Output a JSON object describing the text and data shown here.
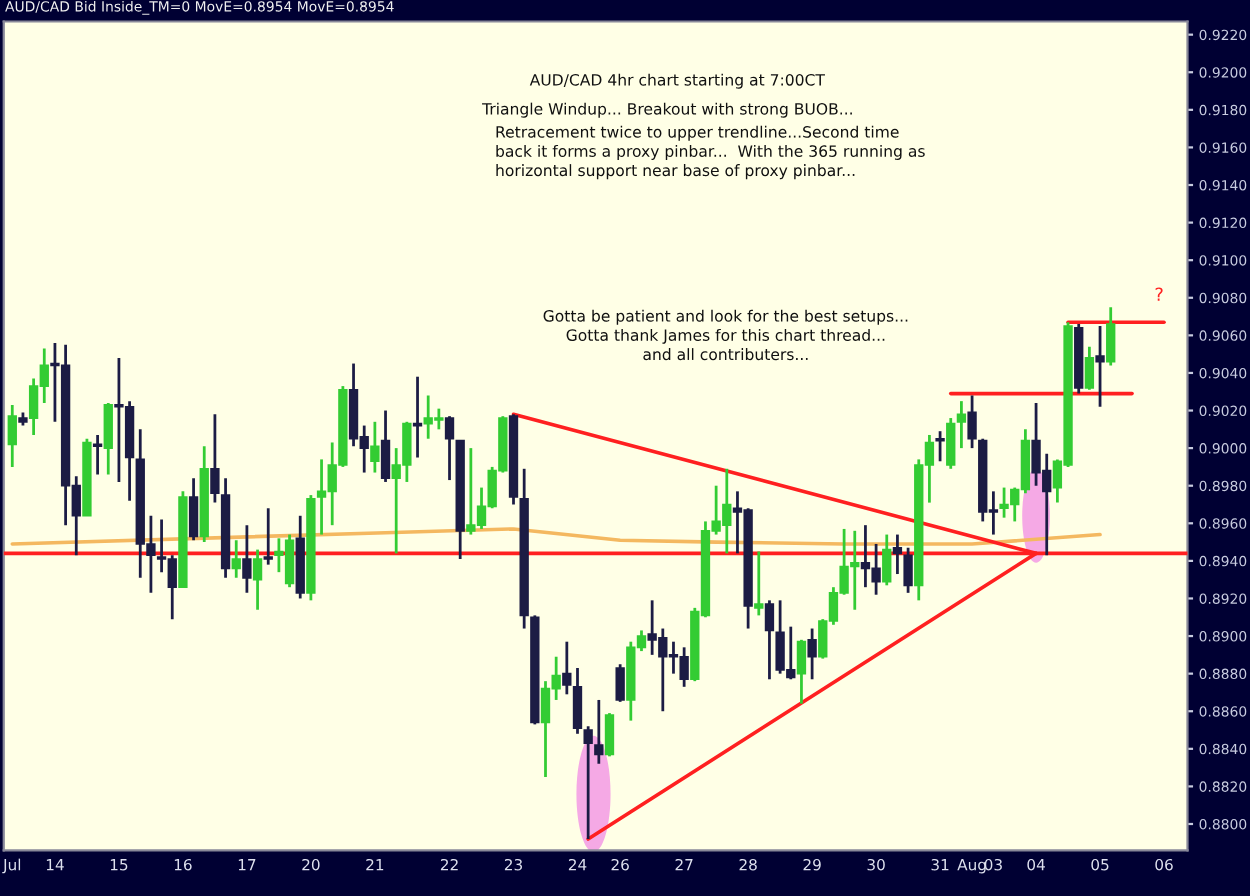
{
  "chart_data": {
    "type": "candlestick",
    "title": "AUD/CAD Bid Inside_TM=0 MovE=0.8954 MovE=0.8954",
    "categories": [
      "Jul",
      null,
      null,
      null,
      "14",
      null,
      null,
      null,
      null,
      null,
      "15",
      null,
      null,
      null,
      null,
      null,
      "16",
      null,
      null,
      null,
      null,
      null,
      "17",
      null,
      null,
      null,
      null,
      null,
      "20",
      null,
      null,
      null,
      null,
      null,
      "21",
      null,
      null,
      null,
      null,
      null,
      null,
      "22",
      null,
      null,
      null,
      null,
      null,
      "23",
      null,
      null,
      null,
      null,
      null,
      "24",
      null,
      null,
      null,
      "26",
      null,
      null,
      null,
      null,
      null,
      "27",
      null,
      null,
      null,
      null,
      null,
      "28",
      null,
      null,
      null,
      null,
      null,
      "29",
      null,
      null,
      null,
      null,
      null,
      "30",
      null,
      null,
      null,
      null,
      null,
      "31",
      null,
      null,
      "Aug",
      null,
      "03",
      null,
      null,
      null,
      "04",
      null,
      null,
      null,
      null,
      null,
      "05",
      null,
      null,
      null,
      null,
      null,
      "06"
    ],
    "ohlc": [
      [
        0.9002,
        0.9023,
        0.899,
        0.9017
      ],
      [
        0.9016,
        0.9019,
        0.9012,
        0.9014
      ],
      [
        0.9016,
        0.9037,
        0.9007,
        0.9033
      ],
      [
        0.9033,
        0.9053,
        0.9024,
        0.9044
      ],
      [
        0.9045,
        0.9056,
        0.9014,
        0.9044
      ],
      [
        0.9044,
        0.9055,
        0.8959,
        0.898
      ],
      [
        0.898,
        0.8985,
        0.8943,
        0.8964
      ],
      [
        0.8964,
        0.9005,
        0.8964,
        0.9003
      ],
      [
        0.9002,
        0.9007,
        0.8986,
        0.9001
      ],
      [
        0.9,
        0.9024,
        0.8986,
        0.9023
      ],
      [
        0.9023,
        0.9048,
        0.8982,
        0.9022
      ],
      [
        0.9022,
        0.9025,
        0.8972,
        0.8995
      ],
      [
        0.8994,
        0.901,
        0.8931,
        0.8949
      ],
      [
        0.8949,
        0.8964,
        0.8923,
        0.8943
      ],
      [
        0.8942,
        0.8962,
        0.8934,
        0.8941
      ],
      [
        0.8941,
        0.8943,
        0.8909,
        0.8926
      ],
      [
        0.8926,
        0.8977,
        0.8926,
        0.8974
      ],
      [
        0.8974,
        0.8984,
        0.8951,
        0.8953
      ],
      [
        0.8953,
        0.9001,
        0.895,
        0.8989
      ],
      [
        0.8989,
        0.9018,
        0.8971,
        0.8976
      ],
      [
        0.8975,
        0.8984,
        0.8931,
        0.8936
      ],
      [
        0.8936,
        0.8951,
        0.8931,
        0.8941
      ],
      [
        0.8941,
        0.8959,
        0.8923,
        0.8931
      ],
      [
        0.893,
        0.8946,
        0.8914,
        0.8941
      ],
      [
        0.8942,
        0.8968,
        0.8938,
        0.8941
      ],
      [
        0.8943,
        0.8952,
        0.8934,
        0.8945
      ],
      [
        0.8928,
        0.8954,
        0.8926,
        0.8951
      ],
      [
        0.8952,
        0.8964,
        0.892,
        0.8923
      ],
      [
        0.8923,
        0.8975,
        0.8919,
        0.8973
      ],
      [
        0.8974,
        0.8994,
        0.8954,
        0.8977
      ],
      [
        0.8977,
        0.9003,
        0.8959,
        0.8991
      ],
      [
        0.8991,
        0.9033,
        0.899,
        0.9031
      ],
      [
        0.9031,
        0.9045,
        0.9001,
        0.9005
      ],
      [
        0.9006,
        0.9012,
        0.8987,
        0.9
      ],
      [
        0.8993,
        0.9014,
        0.8987,
        0.9001
      ],
      [
        0.9004,
        0.902,
        0.8982,
        0.8984
      ],
      [
        0.8984,
        0.9,
        0.8944,
        0.8991
      ],
      [
        0.8991,
        0.9014,
        0.8982,
        0.9013
      ],
      [
        0.9013,
        0.9038,
        0.8995,
        0.9012
      ],
      [
        0.9013,
        0.9028,
        0.9005,
        0.9016
      ],
      [
        0.9015,
        0.9021,
        0.901,
        0.9016
      ],
      [
        0.9016,
        0.9017,
        0.8983,
        0.9005
      ],
      [
        0.9004,
        0.9004,
        0.8941,
        0.8956
      ],
      [
        0.8956,
        0.9,
        0.8954,
        0.8959
      ],
      [
        0.8959,
        0.8979,
        0.8957,
        0.8969
      ],
      [
        0.8969,
        0.899,
        0.8968,
        0.8988
      ],
      [
        0.8988,
        0.9017,
        0.8987,
        0.9016
      ],
      [
        0.9017,
        0.9018,
        0.897,
        0.8974
      ],
      [
        0.8973,
        0.8989,
        0.8904,
        0.8911
      ],
      [
        0.891,
        0.8911,
        0.8853,
        0.8854
      ],
      [
        0.8854,
        0.8876,
        0.8825,
        0.8872
      ],
      [
        0.8872,
        0.8889,
        0.8866,
        0.8879
      ],
      [
        0.888,
        0.8897,
        0.8869,
        0.8874
      ],
      [
        0.8873,
        0.8883,
        0.8848,
        0.8851
      ],
      [
        0.885,
        0.8852,
        0.8792,
        0.8843
      ],
      [
        0.8842,
        0.8866,
        0.8832,
        0.8837
      ],
      [
        0.8837,
        0.8859,
        0.8836,
        0.8858
      ],
      [
        0.8883,
        0.8885,
        0.8865,
        0.8866
      ],
      [
        0.8866,
        0.8897,
        0.8855,
        0.8894
      ],
      [
        0.8894,
        0.8903,
        0.8892,
        0.89
      ],
      [
        0.8901,
        0.8919,
        0.889,
        0.8898
      ],
      [
        0.8899,
        0.8904,
        0.886,
        0.8889
      ],
      [
        0.889,
        0.8897,
        0.888,
        0.8889
      ],
      [
        0.8889,
        0.8894,
        0.8873,
        0.8877
      ],
      [
        0.8877,
        0.8915,
        0.8876,
        0.8913
      ],
      [
        0.8911,
        0.8961,
        0.891,
        0.8956
      ],
      [
        0.8956,
        0.898,
        0.8954,
        0.8961
      ],
      [
        0.8959,
        0.8989,
        0.8944,
        0.897
      ],
      [
        0.8968,
        0.8977,
        0.8944,
        0.8966
      ],
      [
        0.8967,
        0.8968,
        0.8904,
        0.8916
      ],
      [
        0.8915,
        0.8945,
        0.8911,
        0.8917
      ],
      [
        0.8917,
        0.8919,
        0.8877,
        0.8903
      ],
      [
        0.8902,
        0.8919,
        0.888,
        0.8882
      ],
      [
        0.8882,
        0.8905,
        0.8877,
        0.8878
      ],
      [
        0.888,
        0.8898,
        0.8864,
        0.8897
      ],
      [
        0.8898,
        0.8904,
        0.8877,
        0.8889
      ],
      [
        0.8889,
        0.8909,
        0.8888,
        0.8908
      ],
      [
        0.8908,
        0.8926,
        0.8906,
        0.8923
      ],
      [
        0.8923,
        0.8957,
        0.8922,
        0.8937
      ],
      [
        0.8937,
        0.8956,
        0.8914,
        0.8939
      ],
      [
        0.8939,
        0.8959,
        0.8926,
        0.8936
      ],
      [
        0.8936,
        0.8949,
        0.8922,
        0.8929
      ],
      [
        0.8929,
        0.8954,
        0.8927,
        0.8946
      ],
      [
        0.8947,
        0.8954,
        0.8933,
        0.8944
      ],
      [
        0.8943,
        0.8947,
        0.8923,
        0.8927
      ],
      [
        0.8927,
        0.8994,
        0.8919,
        0.8991
      ],
      [
        0.8991,
        0.9007,
        0.8971,
        0.9003
      ],
      [
        0.9005,
        0.9009,
        0.8993,
        0.9004
      ],
      [
        0.8991,
        0.9016,
        0.8989,
        0.9013
      ],
      [
        0.9014,
        0.9025,
        0.9,
        0.9018
      ],
      [
        0.9019,
        0.9028,
        0.9,
        0.9005
      ],
      [
        0.9004,
        0.9005,
        0.8961,
        0.8966
      ],
      [
        0.8967,
        0.8977,
        0.8954,
        0.8966
      ],
      [
        0.8968,
        0.8979,
        0.8963,
        0.897
      ],
      [
        0.897,
        0.8979,
        0.8961,
        0.8978
      ],
      [
        0.8978,
        0.901,
        0.8976,
        0.9004
      ],
      [
        0.9004,
        0.9024,
        0.898,
        0.8987
      ],
      [
        0.8988,
        0.8997,
        0.8943,
        0.8977
      ],
      [
        0.8979,
        0.8994,
        0.8971,
        0.8993
      ],
      [
        0.8991,
        0.9067,
        0.899,
        0.9065
      ],
      [
        0.9064,
        0.9066,
        0.9029,
        0.9032
      ],
      [
        0.9032,
        0.9054,
        0.9031,
        0.9048
      ],
      [
        0.9049,
        0.9065,
        0.9022,
        0.9046
      ],
      [
        0.9046,
        0.9075,
        0.9044,
        0.9066
      ],
      null,
      null,
      null,
      null,
      null
    ],
    "colors": [
      "#33cc33",
      "#1c1c44",
      "#33cc33",
      "#33cc33",
      "#1c1c44",
      "#1c1c44",
      "#1c1c44",
      "#33cc33",
      "#1c1c44",
      "#33cc33",
      "#1c1c44",
      "#1c1c44",
      "#1c1c44",
      "#1c1c44",
      "#1c1c44",
      "#1c1c44",
      "#33cc33",
      "#1c1c44",
      "#33cc33",
      "#1c1c44",
      "#1c1c44",
      "#33cc33",
      "#1c1c44",
      "#33cc33",
      "#1c1c44",
      "#33cc33",
      "#33cc33",
      "#1c1c44",
      "#33cc33",
      "#33cc33",
      "#33cc33",
      "#33cc33",
      "#1c1c44",
      "#1c1c44",
      "#33cc33",
      "#1c1c44",
      "#33cc33",
      "#33cc33",
      "#1c1c44",
      "#33cc33",
      "#33cc33",
      "#1c1c44",
      "#1c1c44",
      "#33cc33",
      "#33cc33",
      "#33cc33",
      "#33cc33",
      "#1c1c44",
      "#1c1c44",
      "#1c1c44",
      "#33cc33",
      "#33cc33",
      "#1c1c44",
      "#1c1c44",
      "#1c1c44",
      "#1c1c44",
      "#33cc33",
      "#1c1c44",
      "#33cc33",
      "#33cc33",
      "#1c1c44",
      "#1c1c44",
      "#1c1c44",
      "#1c1c44",
      "#33cc33",
      "#33cc33",
      "#33cc33",
      "#33cc33",
      "#1c1c44",
      "#1c1c44",
      "#33cc33",
      "#1c1c44",
      "#1c1c44",
      "#1c1c44",
      "#33cc33",
      "#1c1c44",
      "#33cc33",
      "#33cc33",
      "#33cc33",
      "#33cc33",
      "#1c1c44",
      "#1c1c44",
      "#33cc33",
      "#1c1c44",
      "#1c1c44",
      "#33cc33",
      "#33cc33",
      "#1c1c44",
      "#33cc33",
      "#33cc33",
      "#1c1c44",
      "#1c1c44",
      "#1c1c44",
      "#33cc33",
      "#33cc33",
      "#33cc33",
      "#1c1c44",
      "#1c1c44",
      "#33cc33",
      "#33cc33",
      "#1c1c44",
      "#33cc33",
      "#1c1c44",
      "#33cc33",
      null,
      null,
      null,
      null,
      null
    ],
    "series": [
      {
        "type": "line",
        "color": "#f4b860",
        "values": [
          0.8949,
          null,
          null,
          null,
          null,
          null,
          null,
          null,
          null,
          null,
          null,
          null,
          null,
          null,
          null,
          null,
          null,
          null,
          null,
          null,
          null,
          null,
          null,
          null,
          null,
          null,
          null,
          null,
          null,
          null,
          null,
          null,
          null,
          null,
          null,
          0.8955,
          null,
          null,
          null,
          null,
          null,
          null,
          null,
          null,
          null,
          null,
          null,
          0.8957,
          null,
          null,
          null,
          null,
          null,
          null,
          null,
          null,
          null,
          0.8951,
          null,
          null,
          null,
          null,
          null,
          null,
          null,
          null,
          0.895,
          null,
          null,
          null,
          null,
          null,
          null,
          null,
          null,
          null,
          null,
          null,
          0.8949,
          null,
          null,
          null,
          null,
          null,
          null,
          null,
          null,
          null,
          null,
          null,
          0.8949,
          null,
          null,
          null,
          null,
          null,
          null,
          null,
          null,
          null,
          null,
          null,
          0.8954,
          null,
          null,
          null,
          null,
          null,
          null
        ]
      },
      {
        "type": "line",
        "color": "#ff2020",
        "values": [
          null,
          null,
          null,
          null,
          null,
          null,
          null,
          null,
          null,
          null,
          null,
          null,
          null,
          null,
          null,
          null,
          null,
          null,
          null,
          null,
          null,
          null,
          null,
          null,
          null,
          null,
          null,
          null,
          null,
          null,
          null,
          null,
          null,
          null,
          null,
          null,
          null,
          null,
          null,
          null,
          null,
          null,
          null,
          null,
          null,
          null,
          null,
          0.9018,
          null,
          null,
          null,
          null,
          null,
          null,
          null,
          null,
          null,
          null,
          null,
          null,
          null,
          null,
          null,
          null,
          null,
          null,
          null,
          null,
          null,
          null,
          null,
          null,
          null,
          null,
          null,
          null,
          null,
          null,
          null,
          null,
          null,
          null,
          null,
          null,
          null,
          null,
          null,
          null,
          null,
          null,
          null,
          null,
          null,
          null,
          null,
          null,
          0.8944,
          null,
          null,
          null,
          null,
          null,
          null,
          null,
          null,
          null,
          null,
          null,
          null
        ]
      },
      {
        "type": "line",
        "color": "#ff2020",
        "values": [
          null,
          null,
          null,
          null,
          null,
          null,
          null,
          null,
          null,
          null,
          null,
          null,
          null,
          null,
          null,
          null,
          null,
          null,
          null,
          null,
          null,
          null,
          null,
          null,
          null,
          null,
          null,
          null,
          null,
          null,
          null,
          null,
          null,
          null,
          null,
          null,
          null,
          null,
          null,
          null,
          null,
          null,
          null,
          null,
          null,
          null,
          null,
          null,
          null,
          null,
          null,
          null,
          null,
          null,
          0.8792,
          null,
          null,
          null,
          null,
          null,
          null,
          null,
          null,
          null,
          null,
          null,
          null,
          null,
          null,
          null,
          null,
          null,
          null,
          null,
          null,
          null,
          null,
          null,
          null,
          null,
          null,
          null,
          null,
          null,
          null,
          null,
          null,
          null,
          null,
          null,
          null,
          null,
          null,
          null,
          null,
          null,
          0.8944,
          null,
          null,
          null,
          null,
          null,
          null,
          null,
          null,
          null,
          null,
          null,
          null
        ]
      },
      {
        "type": "line",
        "color": "#ff2020",
        "values": [
          null,
          null,
          null,
          null,
          null,
          null,
          null,
          null,
          null,
          null,
          null,
          null,
          null,
          null,
          null,
          null,
          null,
          null,
          null,
          null,
          null,
          null,
          null,
          null,
          null,
          null,
          null,
          null,
          null,
          null,
          null,
          null,
          null,
          null,
          null,
          null,
          null,
          null,
          null,
          null,
          null,
          null,
          null,
          null,
          null,
          null,
          null,
          null,
          null,
          null,
          null,
          null,
          null,
          null,
          null,
          null,
          null,
          null,
          null,
          null,
          null,
          null,
          null,
          null,
          null,
          null,
          null,
          null,
          null,
          null,
          null,
          null,
          null,
          null,
          null,
          null,
          null,
          null,
          null,
          null,
          null,
          null,
          null,
          null,
          null,
          null,
          null,
          null,
          0.9029,
          null,
          null,
          null,
          null,
          null,
          null,
          null,
          null,
          null,
          null,
          null,
          null,
          null,
          null,
          null,
          null,
          0.9029,
          null,
          null,
          null
        ]
      },
      {
        "type": "line",
        "color": "#ff2020",
        "values": [
          null,
          null,
          null,
          null,
          null,
          null,
          null,
          null,
          null,
          null,
          null,
          null,
          null,
          null,
          null,
          null,
          null,
          null,
          null,
          null,
          null,
          null,
          null,
          null,
          null,
          null,
          null,
          null,
          null,
          null,
          null,
          null,
          null,
          null,
          null,
          null,
          null,
          null,
          null,
          null,
          null,
          null,
          null,
          null,
          null,
          null,
          null,
          null,
          null,
          null,
          null,
          null,
          null,
          null,
          null,
          null,
          null,
          null,
          null,
          null,
          null,
          null,
          null,
          null,
          null,
          null,
          null,
          null,
          null,
          null,
          null,
          null,
          null,
          null,
          null,
          null,
          null,
          null,
          null,
          null,
          null,
          null,
          null,
          null,
          null,
          null,
          null,
          null,
          null,
          null,
          null,
          null,
          null,
          null,
          null,
          null,
          null,
          null,
          null,
          0.9067,
          null,
          null,
          null,
          null,
          null,
          null,
          null,
          null,
          0.9067
        ]
      }
    ],
    "ref_lines": [
      {
        "axis": "y",
        "value": 0.8944,
        "color": "#ff2020"
      }
    ],
    "annotations": [
      "AUD/CAD 4hr chart starting at 7:00CT",
      "Triangle Windup... Breakout with strong BUOB...",
      "Retracement twice to upper trendline...Second time\nback it forms a proxy pinbar...  With the 365 running as\nhorizontal support near base of proxy pinbar...",
      "Gotta be patient and look for the best setups...\nGotta thank James for this chart thread...\nand all contributers...",
      "?"
    ],
    "ylim": [
      0.8786,
      0.9227
    ],
    "yticks": [
      {
        "value": 0.88,
        "label": "0.8800"
      },
      {
        "value": 0.882,
        "label": "0.8820"
      },
      {
        "value": 0.884,
        "label": "0.8840"
      },
      {
        "value": 0.886,
        "label": "0.8860"
      },
      {
        "value": 0.888,
        "label": "0.8880"
      },
      {
        "value": 0.89,
        "label": "0.8900"
      },
      {
        "value": 0.892,
        "label": "0.8920"
      },
      {
        "value": 0.894,
        "label": "0.8940"
      },
      {
        "value": 0.896,
        "label": "0.8960"
      },
      {
        "value": 0.898,
        "label": "0.8980"
      },
      {
        "value": 0.9,
        "label": "0.9000"
      },
      {
        "value": 0.902,
        "label": "0.9020"
      },
      {
        "value": 0.904,
        "label": "0.9040"
      },
      {
        "value": 0.906,
        "label": "0.9060"
      },
      {
        "value": 0.908,
        "label": "0.9080"
      },
      {
        "value": 0.91,
        "label": "0.9100"
      },
      {
        "value": 0.912,
        "label": "0.9120"
      },
      {
        "value": 0.914,
        "label": "0.9140"
      },
      {
        "value": 0.916,
        "label": "0.9160"
      },
      {
        "value": 0.918,
        "label": "0.9180"
      },
      {
        "value": 0.92,
        "label": "0.9200"
      },
      {
        "value": 0.922,
        "label": "0.9220"
      }
    ]
  }
}
